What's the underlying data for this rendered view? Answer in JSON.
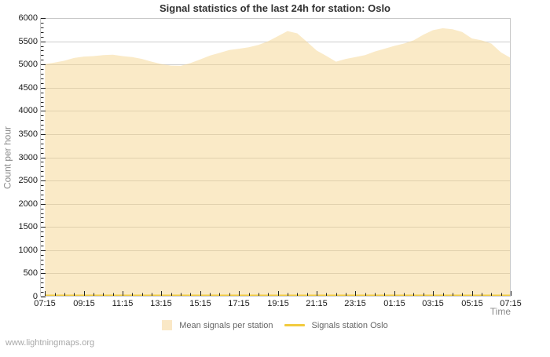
{
  "watermark": "www.lightningmaps.org",
  "legend": {
    "mean_label": "Mean signals per station",
    "oslo_label": "Signals station Oslo"
  },
  "chart_data": {
    "type": "area",
    "title": "Signal statistics of the last 24h for station: Oslo",
    "xlabel": "Time",
    "ylabel": "Count per hour",
    "ylim": [
      0,
      6000
    ],
    "y_tick_step": 500,
    "y_minor_step": 100,
    "grid": true,
    "legend_position": "bottom",
    "x_tick_labels": [
      "07:15",
      "09:15",
      "11:15",
      "13:15",
      "15:15",
      "17:15",
      "19:15",
      "21:15",
      "23:15",
      "01:15",
      "03:15",
      "05:15",
      "07:15"
    ],
    "x_tick_interval_minutes": 120,
    "x_minor_interval_minutes": 30,
    "x_axis_lead_minutes": 15,
    "x_step_minutes": 30,
    "x": [
      "07:15",
      "07:45",
      "08:15",
      "08:45",
      "09:15",
      "09:45",
      "10:15",
      "10:45",
      "11:15",
      "11:45",
      "12:15",
      "12:45",
      "13:15",
      "13:45",
      "14:15",
      "14:45",
      "15:15",
      "15:45",
      "16:15",
      "16:45",
      "17:15",
      "17:45",
      "18:15",
      "18:45",
      "19:15",
      "19:45",
      "20:15",
      "20:45",
      "21:15",
      "21:45",
      "22:15",
      "22:45",
      "23:15",
      "23:45",
      "00:15",
      "00:45",
      "01:15",
      "01:45",
      "02:15",
      "02:45",
      "03:15",
      "03:45",
      "04:15",
      "04:45",
      "05:15",
      "05:45",
      "06:15",
      "06:45",
      "07:15"
    ],
    "series": [
      {
        "name": "Mean signals per station",
        "type": "area",
        "values": [
          5010,
          5040,
          5080,
          5140,
          5170,
          5180,
          5200,
          5210,
          5180,
          5160,
          5120,
          5060,
          5010,
          4975,
          4970,
          5030,
          5110,
          5190,
          5250,
          5310,
          5340,
          5370,
          5420,
          5500,
          5610,
          5720,
          5670,
          5490,
          5300,
          5185,
          5060,
          5120,
          5160,
          5200,
          5280,
          5340,
          5400,
          5450,
          5520,
          5640,
          5740,
          5780,
          5760,
          5700,
          5560,
          5520,
          5450,
          5260,
          5140
        ]
      },
      {
        "name": "Signals station Oslo",
        "type": "line",
        "values_constant": 25
      }
    ],
    "colors": {
      "mean_area_fill": "#f6d590",
      "mean_area_opacity": 0.5,
      "mean_swatch": "#fae8c6",
      "oslo_line": "#f2cb3e",
      "grid": "#cccccc",
      "frame": "#c8c8c8",
      "tick": "#222222"
    }
  }
}
